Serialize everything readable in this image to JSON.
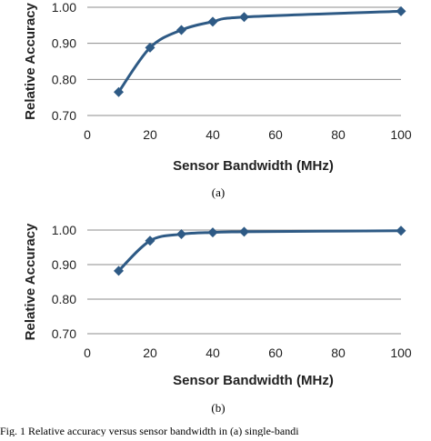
{
  "chart_data": [
    {
      "type": "line",
      "xlabel": "Sensor Bandwidth (MHz)",
      "ylabel": "Relative Accuracy",
      "xlim": [
        0,
        100
      ],
      "ylim": [
        0.7,
        1.0
      ],
      "xticks": [
        "0",
        "20",
        "40",
        "60",
        "80",
        "100"
      ],
      "yticks": [
        "0.70",
        "0.80",
        "0.90",
        "1.00"
      ],
      "grid": "horizontal",
      "series": [
        {
          "x": [
            10,
            20,
            30,
            40,
            50,
            100
          ],
          "y": [
            0.765,
            0.888,
            0.937,
            0.96,
            0.973,
            0.989
          ],
          "color": "#2E5A85"
        }
      ],
      "caption": "(a)"
    },
    {
      "type": "line",
      "xlabel": "Sensor Bandwidth (MHz)",
      "ylabel": "Relative Accuracy",
      "xlim": [
        0,
        100
      ],
      "ylim": [
        0.7,
        1.0
      ],
      "xticks": [
        "0",
        "20",
        "40",
        "60",
        "80",
        "100"
      ],
      "yticks": [
        "0.70",
        "0.80",
        "0.90",
        "1.00"
      ],
      "grid": "horizontal",
      "series": [
        {
          "x": [
            10,
            20,
            30,
            40,
            50,
            100
          ],
          "y": [
            0.882,
            0.969,
            0.988,
            0.993,
            0.995,
            0.998
          ],
          "color": "#2E5A85"
        }
      ],
      "caption": "(b)"
    }
  ],
  "caption_fragment": "Fig. 1 Relative accuracy versus sensor bandwidth in (a) single-bandi"
}
